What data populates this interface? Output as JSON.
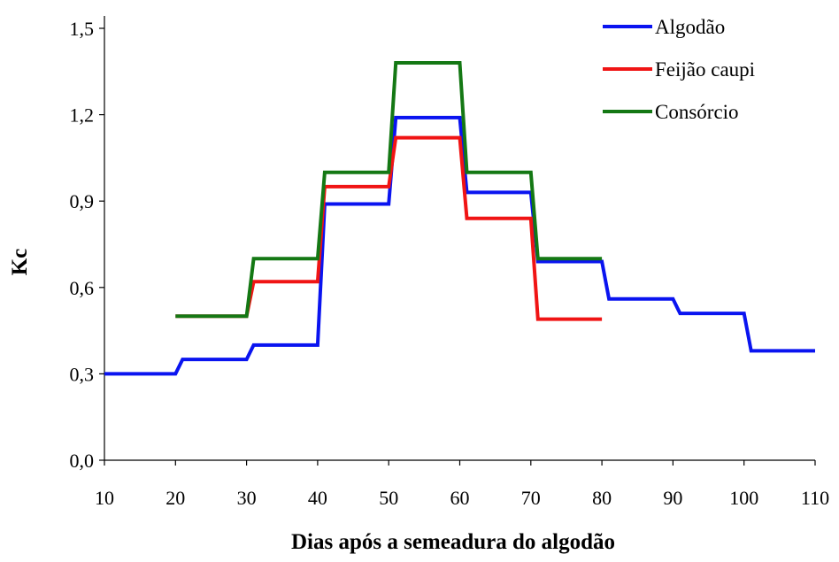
{
  "chart_data": {
    "type": "line",
    "xlabel": "Dias após a semeadura do algodão",
    "ylabel": "Kc",
    "xlim": [
      10,
      110
    ],
    "ylim": [
      0,
      1.5
    ],
    "x_ticks": [
      10,
      20,
      30,
      40,
      50,
      60,
      70,
      80,
      90,
      100,
      110
    ],
    "x_tick_labels": [
      "10",
      "20",
      "30",
      "40",
      "50",
      "60",
      "70",
      "80",
      "90",
      "100",
      "110"
    ],
    "y_ticks": [
      0,
      0.3,
      0.6,
      0.9,
      1.2,
      1.5
    ],
    "y_tick_labels": [
      "0,0",
      "0,3",
      "0,6",
      "0,9",
      "1,2",
      "1,5"
    ],
    "grid": false,
    "legend_position": "top-right",
    "series": [
      {
        "name": "Algodão",
        "color": "#0a14f0",
        "points": [
          [
            10,
            0.3
          ],
          [
            20,
            0.3
          ],
          [
            21,
            0.35
          ],
          [
            30,
            0.35
          ],
          [
            31,
            0.4
          ],
          [
            40,
            0.4
          ],
          [
            41,
            0.89
          ],
          [
            50,
            0.89
          ],
          [
            51,
            1.19
          ],
          [
            60,
            1.19
          ],
          [
            61,
            0.93
          ],
          [
            70,
            0.93
          ],
          [
            71,
            0.69
          ],
          [
            80,
            0.69
          ],
          [
            81,
            0.56
          ],
          [
            90,
            0.56
          ],
          [
            91,
            0.51
          ],
          [
            100,
            0.51
          ],
          [
            101,
            0.38
          ],
          [
            110,
            0.38
          ]
        ]
      },
      {
        "name": "Feijão caupi",
        "color": "#f01414",
        "points": [
          [
            20,
            0.5
          ],
          [
            30,
            0.5
          ],
          [
            31,
            0.62
          ],
          [
            40,
            0.62
          ],
          [
            41,
            0.95
          ],
          [
            50,
            0.95
          ],
          [
            51,
            1.12
          ],
          [
            60,
            1.12
          ],
          [
            61,
            0.84
          ],
          [
            70,
            0.84
          ],
          [
            71,
            0.49
          ],
          [
            80,
            0.49
          ]
        ]
      },
      {
        "name": "Consórcio",
        "color": "#147814",
        "points": [
          [
            20,
            0.5
          ],
          [
            30,
            0.5
          ],
          [
            31,
            0.7
          ],
          [
            40,
            0.7
          ],
          [
            41,
            1.0
          ],
          [
            50,
            1.0
          ],
          [
            51,
            1.38
          ],
          [
            60,
            1.38
          ],
          [
            61,
            1.0
          ],
          [
            70,
            1.0
          ],
          [
            71,
            0.7
          ],
          [
            80,
            0.7
          ]
        ]
      }
    ]
  }
}
